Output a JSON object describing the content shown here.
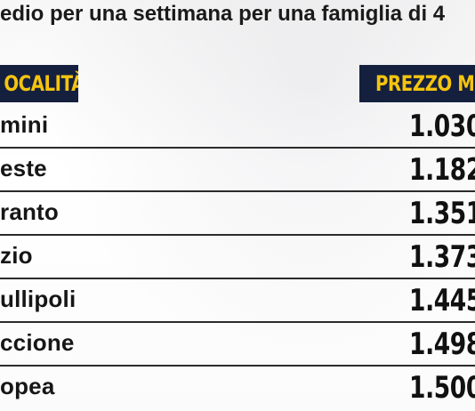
{
  "subtitle": "edio per una settimana per una famiglia di 4",
  "header": {
    "location_label": "OCALITÀ",
    "price_label": "PREZZO M"
  },
  "colors": {
    "header_bg": "#15203f",
    "header_text": "#f5c40f",
    "divider": "#2b2b2b"
  },
  "rows": [
    {
      "city": "mini",
      "price": "1.030"
    },
    {
      "city": "este",
      "price": "1.182"
    },
    {
      "city": "ranto",
      "price": "1.351"
    },
    {
      "city": "zio",
      "price": "1.373"
    },
    {
      "city": "ullipoli",
      "price": "1.445"
    },
    {
      "city": "ccione",
      "price": "1.498"
    },
    {
      "city": "opea",
      "price": "1.500"
    }
  ]
}
